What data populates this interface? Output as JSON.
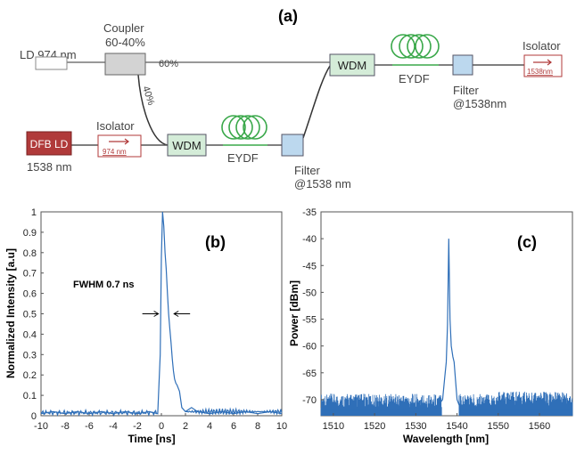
{
  "diagram": {
    "panel_label": "(a)",
    "ld_label": "LD 974 nm",
    "coupler_label_1": "Coupler",
    "coupler_label_2": "60-40%",
    "branch_60": "60%",
    "branch_40": "40%",
    "wdm_label": "WDM",
    "eydf_label": "EYDF",
    "filter_label": "Filter",
    "filter_wavelength_top": "@1538nm",
    "filter_wavelength_bottom": "@1538 nm",
    "isolator_label": "Isolator",
    "isolator_top_inner": "1538nm",
    "isolator_bottom_inner": "974 nm",
    "dfb_label": "DFB LD",
    "dfb_wavelength": "1538 nm",
    "colors": {
      "dfb": "#b03a3a",
      "wdm": "#d4ecd8",
      "filter": "#bcd8ee",
      "fiber": "#3aa84a",
      "arrow": "#b03a3a"
    }
  },
  "chart_data": [
    {
      "type": "line",
      "panel_label": "(b)",
      "xlabel": "Time [ns]",
      "ylabel": "Normalized Intensity [a.u]",
      "xlim": [
        -10,
        10
      ],
      "ylim": [
        0,
        1
      ],
      "xticks": [
        -10,
        -8,
        -6,
        -4,
        -2,
        0,
        2,
        4,
        6,
        8,
        10
      ],
      "yticks": [
        0,
        0.1,
        0.2,
        0.3,
        0.4,
        0.5,
        0.6,
        0.7,
        0.8,
        0.9,
        1
      ],
      "annotation": "FWHM 0.7 ns",
      "annotation_level": 0.5,
      "color": "#2f6fb8",
      "series": [
        {
          "x": [
            -10,
            -9,
            -8,
            -7,
            -6,
            -5,
            -4,
            -3,
            -2,
            -1,
            -0.3,
            -0.1,
            0,
            0.1,
            0.2,
            0.3,
            0.4,
            0.5,
            0.6,
            0.7,
            0.8,
            0.9,
            1.0,
            1.1,
            1.2,
            1.3,
            1.5,
            1.7,
            2,
            2.5,
            3,
            4,
            5,
            6,
            7,
            8,
            9,
            10
          ],
          "y": [
            0.01,
            0.02,
            0.01,
            0.02,
            0.01,
            0.02,
            0.01,
            0.02,
            0.01,
            0.02,
            0.01,
            0.3,
            0.78,
            1.0,
            0.93,
            0.8,
            0.72,
            0.6,
            0.5,
            0.43,
            0.36,
            0.28,
            0.22,
            0.18,
            0.16,
            0.15,
            0.12,
            0.04,
            0.02,
            0.04,
            0.02,
            0.01,
            0.02,
            0.01,
            0.02,
            0.01,
            0.02,
            0.01
          ]
        }
      ]
    },
    {
      "type": "line",
      "panel_label": "(c)",
      "xlabel": "Wavelength [nm]",
      "ylabel": "Power [dBm]",
      "xlim": [
        1507,
        1568
      ],
      "ylim": [
        -73,
        -35
      ],
      "xticks": [
        1510,
        1520,
        1530,
        1540,
        1550,
        1560
      ],
      "yticks": [
        -35,
        -40,
        -45,
        -50,
        -55,
        -60,
        -65,
        -70
      ],
      "color": "#2f6fb8",
      "noise_floor": -72,
      "series": [
        {
          "x": [
            1507,
            1520,
            1535,
            1536.5,
            1537,
            1537.4,
            1537.7,
            1538,
            1538.3,
            1538.6,
            1539,
            1539.3,
            1539.6,
            1540,
            1541,
            1555,
            1568
          ],
          "y": [
            -72,
            -72,
            -71.5,
            -70,
            -66,
            -63,
            -56,
            -40,
            -55,
            -60,
            -62,
            -63,
            -66,
            -70,
            -72,
            -72,
            -72
          ]
        }
      ]
    }
  ]
}
